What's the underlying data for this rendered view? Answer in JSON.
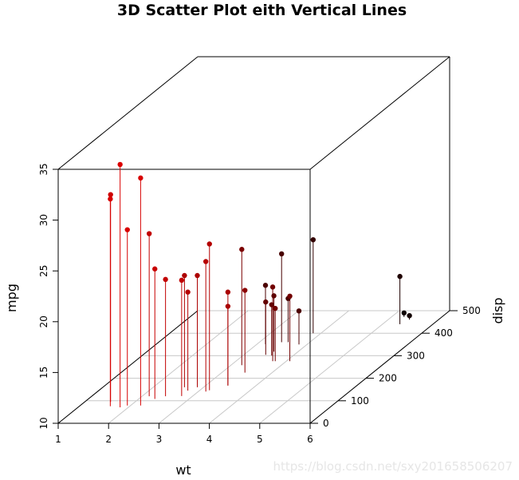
{
  "chart_data": {
    "type": "scatter3d",
    "title": "3D Scatter Plot eith Vertical Lines",
    "xlabel": "wt",
    "ylabel": "disp",
    "zlabel": "mpg",
    "x_ticks": [
      1,
      2,
      3,
      4,
      5,
      6
    ],
    "y_ticks": [
      0,
      100,
      200,
      300,
      400,
      500
    ],
    "z_ticks": [
      10,
      15,
      20,
      25,
      30,
      35
    ],
    "xlim": [
      1,
      6
    ],
    "ylim": [
      0,
      500
    ],
    "zlim": [
      10,
      35
    ],
    "drop_lines": true,
    "color_gradient": [
      "#ff0000",
      "#000000"
    ],
    "grid_plane": "xy",
    "points": [
      {
        "wt": 2.62,
        "disp": 160.0,
        "mpg": 21.0
      },
      {
        "wt": 2.875,
        "disp": 160.0,
        "mpg": 21.0
      },
      {
        "wt": 2.32,
        "disp": 108.0,
        "mpg": 22.8
      },
      {
        "wt": 3.215,
        "disp": 258.0,
        "mpg": 21.4
      },
      {
        "wt": 3.44,
        "disp": 360.0,
        "mpg": 18.7
      },
      {
        "wt": 3.46,
        "disp": 225.0,
        "mpg": 18.1
      },
      {
        "wt": 3.57,
        "disp": 360.0,
        "mpg": 14.3
      },
      {
        "wt": 3.19,
        "disp": 146.7,
        "mpg": 24.4
      },
      {
        "wt": 3.15,
        "disp": 140.8,
        "mpg": 22.8
      },
      {
        "wt": 3.44,
        "disp": 167.6,
        "mpg": 19.2
      },
      {
        "wt": 3.44,
        "disp": 167.6,
        "mpg": 17.8
      },
      {
        "wt": 4.07,
        "disp": 275.8,
        "mpg": 16.4
      },
      {
        "wt": 3.73,
        "disp": 275.8,
        "mpg": 17.3
      },
      {
        "wt": 3.78,
        "disp": 275.8,
        "mpg": 15.2
      },
      {
        "wt": 5.25,
        "disp": 472.0,
        "mpg": 10.4
      },
      {
        "wt": 5.424,
        "disp": 460.0,
        "mpg": 10.4
      },
      {
        "wt": 5.345,
        "disp": 440.0,
        "mpg": 14.7
      },
      {
        "wt": 2.2,
        "disp": 78.7,
        "mpg": 32.4
      },
      {
        "wt": 1.615,
        "disp": 75.7,
        "mpg": 30.4
      },
      {
        "wt": 1.835,
        "disp": 71.1,
        "mpg": 33.9
      },
      {
        "wt": 2.465,
        "disp": 120.1,
        "mpg": 21.5
      },
      {
        "wt": 3.52,
        "disp": 318.0,
        "mpg": 15.5
      },
      {
        "wt": 3.435,
        "disp": 304.0,
        "mpg": 15.2
      },
      {
        "wt": 3.84,
        "disp": 350.0,
        "mpg": 13.3
      },
      {
        "wt": 3.845,
        "disp": 400.0,
        "mpg": 19.2
      },
      {
        "wt": 1.935,
        "disp": 79.0,
        "mpg": 27.3
      },
      {
        "wt": 2.14,
        "disp": 120.3,
        "mpg": 26.0
      },
      {
        "wt": 1.513,
        "disp": 95.1,
        "mpg": 30.4
      },
      {
        "wt": 3.17,
        "disp": 351.0,
        "mpg": 15.8
      },
      {
        "wt": 2.77,
        "disp": 145.0,
        "mpg": 19.7
      },
      {
        "wt": 3.57,
        "disp": 301.0,
        "mpg": 15.0
      },
      {
        "wt": 2.78,
        "disp": 121.0,
        "mpg": 21.4
      }
    ]
  },
  "watermark": "https://blog.csdn.net/sxy201658506207"
}
